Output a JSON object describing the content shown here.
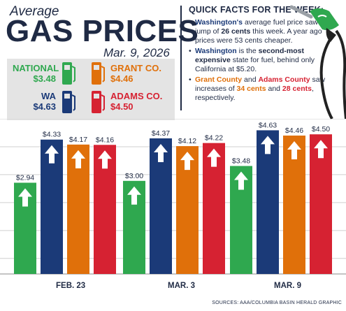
{
  "header": {
    "average": "Average",
    "title": "GAS PRICES",
    "date": "Mar. 9, 2026"
  },
  "price_box": {
    "national": {
      "label": "NATIONAL",
      "value": "$3.48",
      "color": "#2fa84f"
    },
    "grant": {
      "label": "GRANT CO.",
      "value": "$4.46",
      "color": "#e0700a"
    },
    "wa": {
      "label": "WA",
      "value": "$4.63",
      "color": "#1b3a78"
    },
    "adams": {
      "label": "ADAMS CO.",
      "value": "$4.50",
      "color": "#d62232"
    }
  },
  "facts": {
    "title": "QUICK FACTS FOR THE WEEK:",
    "f1": {
      "washington": "Washington's",
      "t1": " average fuel price saw a jump of ",
      "cents": "26 cents",
      "t2": " this week. A year ago prices were 53 cents cheaper."
    },
    "f2": {
      "washington": "Washington",
      "t1": " is the ",
      "second": "second-most expensive",
      "t2": " state for fuel, behind only California at $5.20."
    },
    "f3": {
      "grant": "Grant County",
      "and": " and ",
      "adams": "Adams County",
      "t1": " saw increases of ",
      "c34": "34 cents",
      "and2": " and ",
      "c28": "28 cents",
      "t2": ", respectively."
    }
  },
  "colors": {
    "national": "#2fa84f",
    "wa": "#1b3a78",
    "grant": "#e0700a",
    "adams": "#d62232",
    "navy": "#1f2a44",
    "grid": "#cfcfcf"
  },
  "chart_data": {
    "type": "bar",
    "categories": [
      "FEB. 23",
      "MAR. 3",
      "MAR. 9"
    ],
    "series_order": [
      "national",
      "wa",
      "grant",
      "adams"
    ],
    "values": [
      {
        "national": 2.94,
        "wa": 4.33,
        "grant": 4.17,
        "adams": 4.16
      },
      {
        "national": 3.0,
        "wa": 4.37,
        "grant": 4.12,
        "adams": 4.22
      },
      {
        "national": 3.48,
        "wa": 4.63,
        "grant": 4.46,
        "adams": 4.5
      }
    ],
    "labels": [
      [
        "$2.94",
        "$4.33",
        "$4.17",
        "$4.16"
      ],
      [
        "$3.00",
        "$4.37",
        "$4.12",
        "$4.22"
      ],
      [
        "$3.48",
        "$4.63",
        "$4.46",
        "$4.50"
      ]
    ],
    "ylim": [
      0,
      5
    ],
    "grid": true
  },
  "sources": "SOURCES: AAA/COLUMBIA BASIN HERALD GRAPHIC"
}
